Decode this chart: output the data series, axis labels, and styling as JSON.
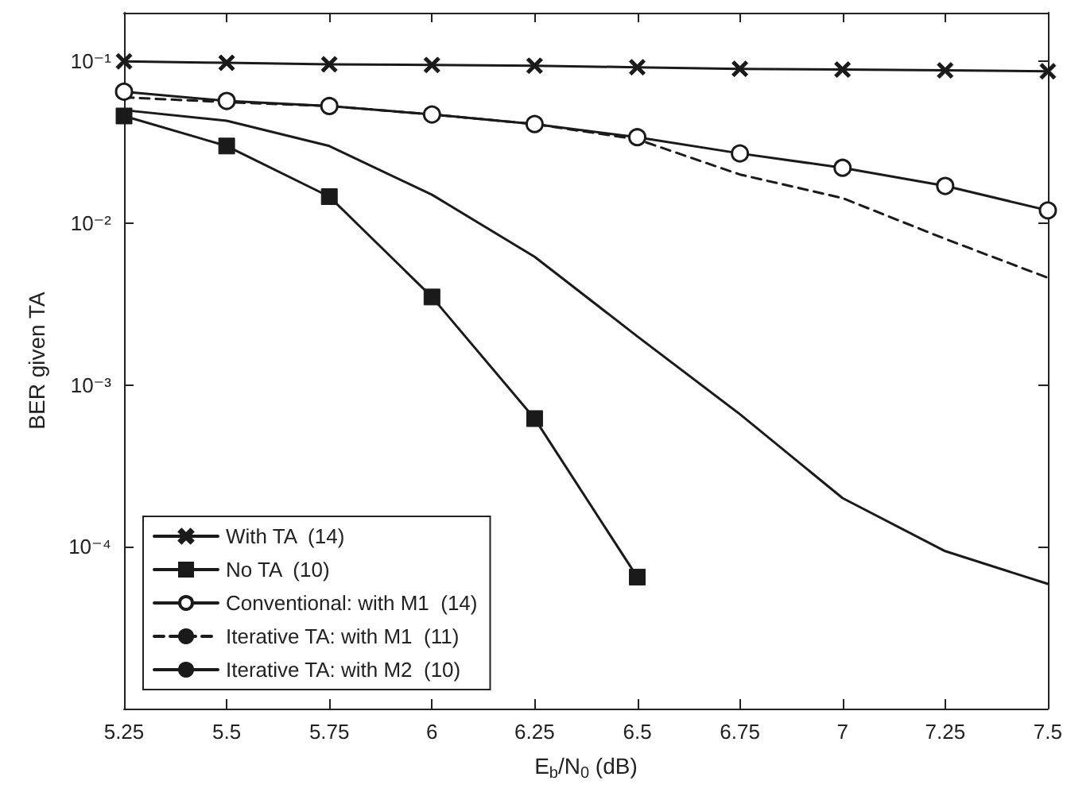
{
  "chart_data": {
    "type": "line",
    "xlabel": "E$_{b}$/N$_{0}$ (dB)",
    "ylabel": "BER given TA",
    "x": [
      5.25,
      5.5,
      5.75,
      6,
      6.25,
      6.5,
      6.75,
      7,
      7.25,
      7.5
    ],
    "series": [
      {
        "name": "With TA  (14)",
        "color": "#1a1a1a",
        "marker": "cross",
        "line_style": "solid",
        "values": [
          0.1,
          0.098,
          0.096,
          0.095,
          0.094,
          0.092,
          0.09,
          0.089,
          0.088,
          0.087
        ]
      },
      {
        "name": "No TA  (10)",
        "color": "#1a1a1a",
        "marker": "square",
        "line_style": "solid",
        "values": [
          0.046,
          0.03,
          0.0146,
          0.0035,
          0.00062,
          6.5e-05,
          null,
          null,
          null,
          null
        ]
      },
      {
        "name": "Conventional: with M1  (14)",
        "color": "#1a1a1a",
        "marker": "circle",
        "line_style": "solid",
        "values": [
          0.065,
          0.057,
          0.053,
          0.047,
          0.041,
          0.034,
          0.027,
          0.022,
          0.017,
          0.012
        ]
      },
      {
        "name": "Iterative TA: with M1  (11)",
        "color": "#1a1a1a",
        "marker": "none",
        "line_style": "dashed",
        "values": [
          0.06,
          0.056,
          0.053,
          0.047,
          0.041,
          0.033,
          0.02,
          0.0143,
          0.008,
          0.0046
        ]
      },
      {
        "name": "Iterative TA: with M2  (10)",
        "color": "#1a1a1a",
        "marker": "none",
        "line_style": "solid",
        "values": [
          0.05,
          0.043,
          0.03,
          0.015,
          0.0062,
          0.002,
          0.00066,
          0.0002,
          9.4e-05,
          5.9e-05
        ]
      }
    ],
    "log": "y",
    "xlim": [
      5.25,
      7.5
    ],
    "xticks": [
      5.25,
      5.5,
      5.75,
      6,
      6.25,
      6.5,
      6.75,
      7,
      7.25,
      7.5
    ],
    "ylim": [
      1e-05,
      0.2
    ],
    "yticks": [
      {
        "value": 0.0001,
        "label": "10⁻⁴"
      },
      {
        "value": 0.001,
        "label": "10⁻³"
      },
      {
        "value": 0.01,
        "label": "10⁻²"
      },
      {
        "value": 0.1,
        "label": "10⁻¹"
      }
    ],
    "grid": false,
    "legend": "bottom left"
  }
}
